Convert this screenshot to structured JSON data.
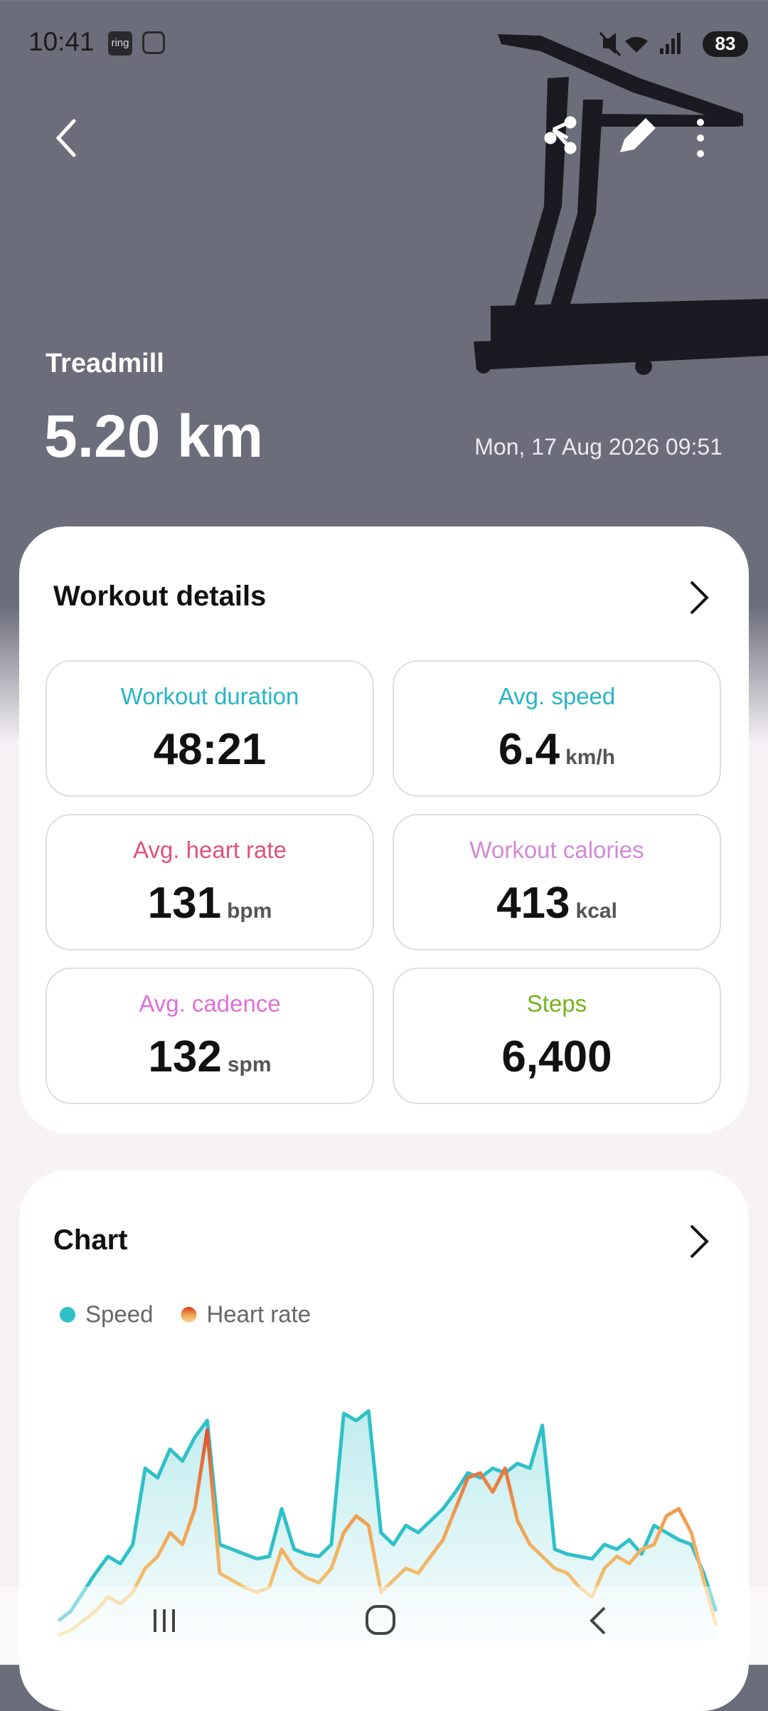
{
  "status_bar": {
    "time": "10:41",
    "icon_label": "ring",
    "battery": "83"
  },
  "header": {
    "activity": "Treadmill",
    "distance": "5.20 km",
    "date": "Mon, 17 Aug 2026 09:51"
  },
  "workout_details": {
    "title": "Workout details",
    "tiles": [
      {
        "label": "Workout duration",
        "value": "48:21",
        "color": "#26b5c4"
      },
      {
        "label": "Avg. speed",
        "value": "6.4",
        "unit": "km/h",
        "color": "#26b5c4"
      },
      {
        "label": "Avg. heart rate",
        "value": "131",
        "unit": "bpm",
        "color": "#e0517c"
      },
      {
        "label": "Workout calories",
        "value": "413",
        "unit": "kcal",
        "color": "#d08ad6"
      },
      {
        "label": "Avg. cadence",
        "value": "132",
        "unit": "spm",
        "color": "#e06fd8"
      },
      {
        "label": "Steps",
        "value": "6,400",
        "color": "#76b21a"
      }
    ]
  },
  "chart": {
    "title": "Chart",
    "type": "line",
    "ylim": [
      0,
      100
    ],
    "series": [
      {
        "name": "Speed",
        "color": "#2fc0c8",
        "values": [
          8,
          12,
          20,
          28,
          35,
          32,
          40,
          72,
          68,
          80,
          75,
          85,
          92,
          40,
          38,
          36,
          34,
          35,
          55,
          38,
          36,
          35,
          40,
          95,
          92,
          96,
          45,
          40,
          48,
          45,
          50,
          55,
          62,
          70,
          68,
          72,
          70,
          74,
          72,
          90,
          38,
          36,
          35,
          34,
          40,
          38,
          42,
          36,
          48,
          45,
          42,
          40,
          28,
          12
        ]
      },
      {
        "name": "Heart rate",
        "colors": [
          "#f6dc90",
          "#f0a050",
          "#d83a22"
        ],
        "values": [
          2,
          4,
          8,
          12,
          18,
          15,
          20,
          30,
          35,
          45,
          40,
          55,
          88,
          28,
          25,
          22,
          20,
          22,
          38,
          30,
          26,
          24,
          30,
          45,
          52,
          48,
          20,
          25,
          30,
          28,
          35,
          42,
          55,
          68,
          70,
          62,
          72,
          50,
          40,
          35,
          30,
          28,
          22,
          18,
          30,
          35,
          32,
          38,
          40,
          52,
          55,
          45,
          25,
          6
        ]
      }
    ]
  }
}
